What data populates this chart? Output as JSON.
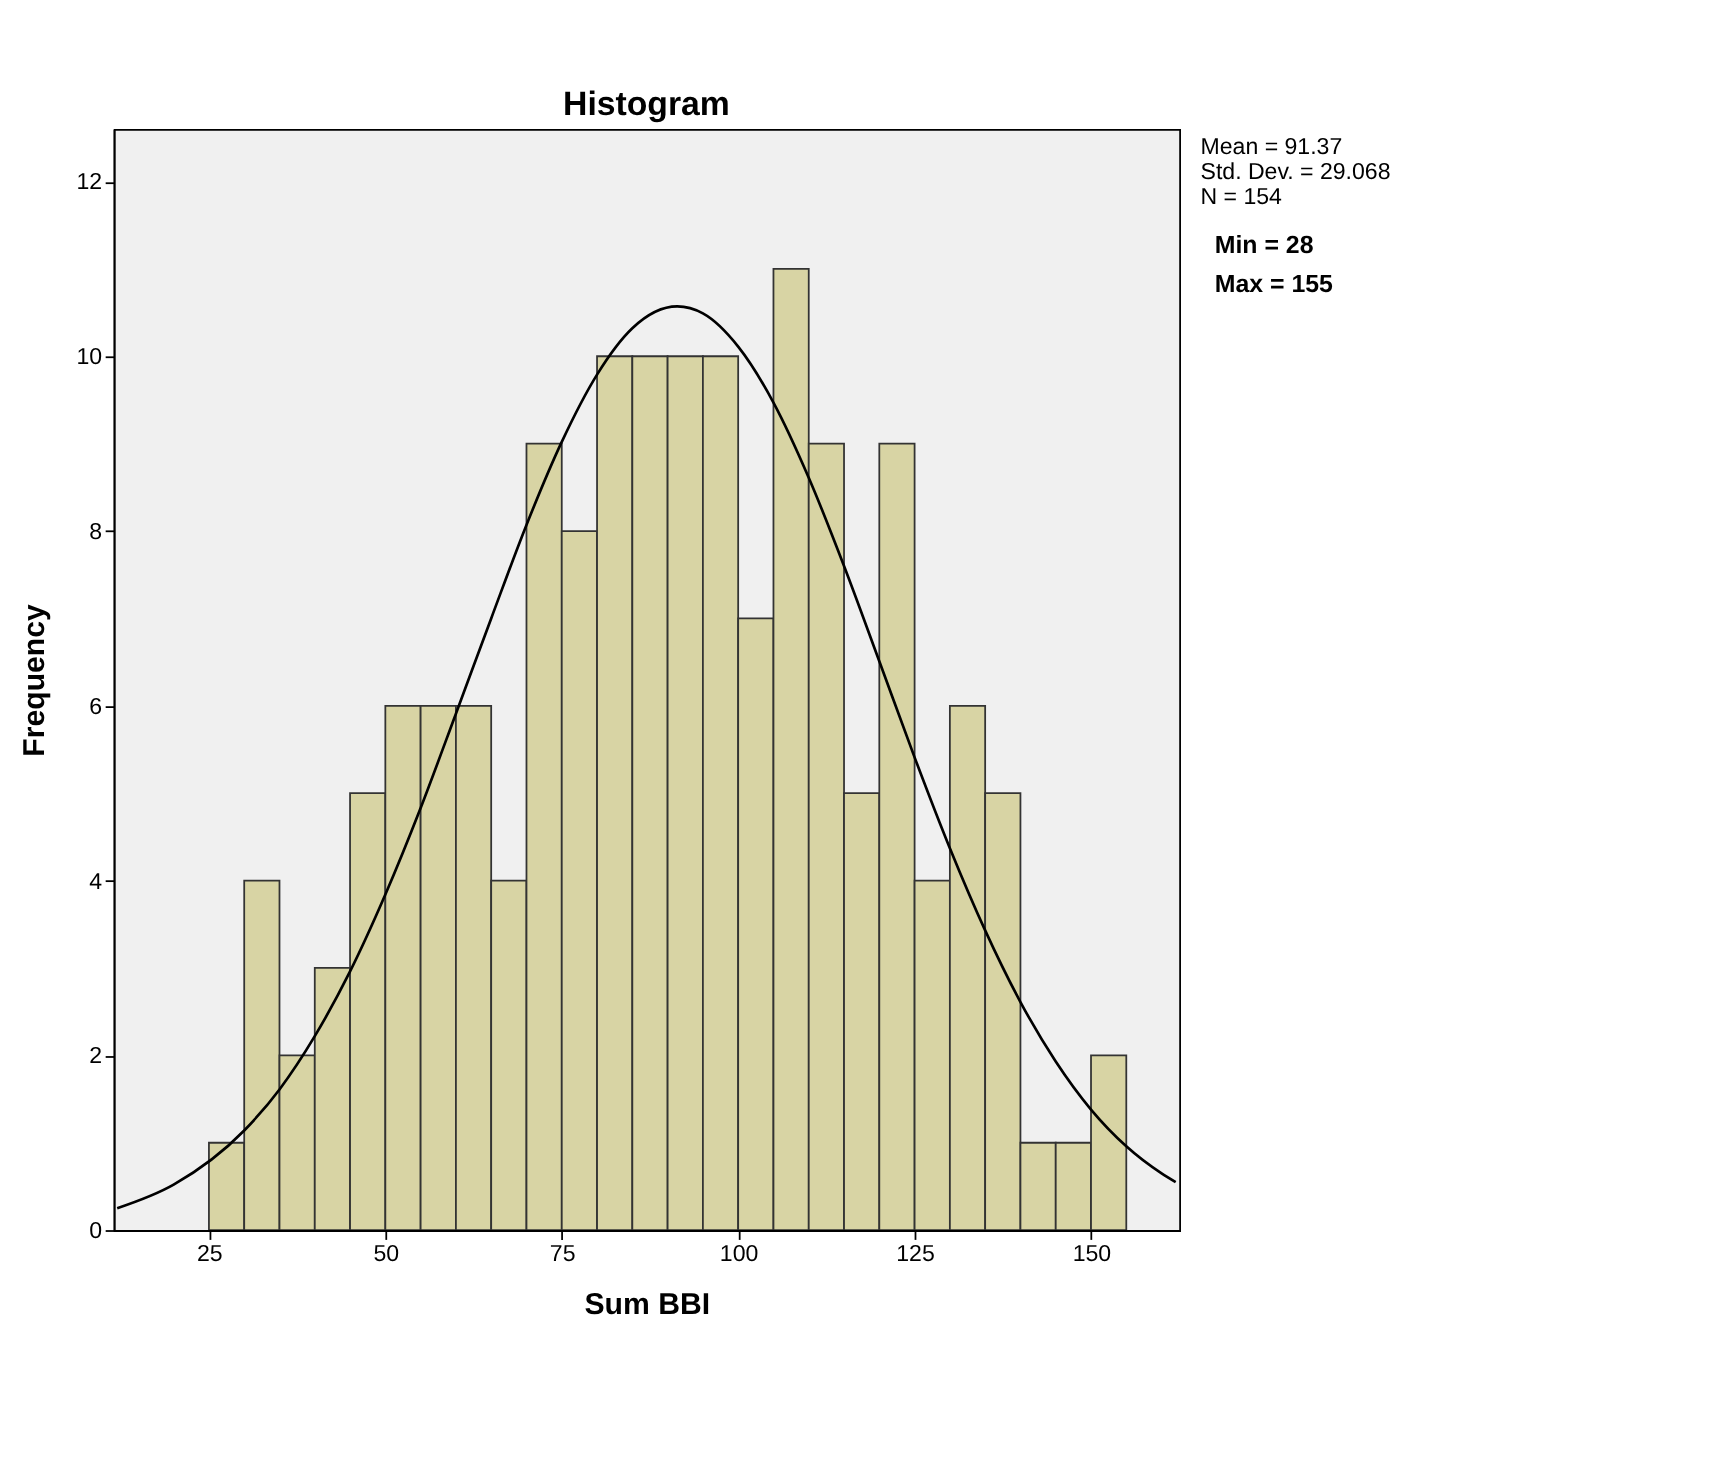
{
  "chart_data": {
    "type": "histogram",
    "title": "Histogram",
    "xlabel": "Sum BBI",
    "ylabel": "Frequency",
    "bins": [
      25,
      30,
      35,
      40,
      45,
      50,
      55,
      60,
      65,
      70,
      75,
      80,
      85,
      90,
      95,
      100,
      105,
      110,
      115,
      120,
      125,
      130,
      135,
      140,
      145,
      150,
      155
    ],
    "values": [
      1,
      4,
      2,
      3,
      5,
      6,
      6,
      6,
      4,
      9,
      8,
      10,
      10,
      10,
      10,
      7,
      11,
      9,
      5,
      9,
      4,
      6,
      5,
      1,
      1,
      2
    ],
    "color": "#d8d4a4",
    "series": [
      {
        "type": "line",
        "color": "#000000",
        "x": [
          12,
          20,
          30,
          35,
          40,
          45,
          50,
          55,
          60,
          65,
          70,
          75,
          80,
          85,
          91.37,
          95,
          100,
          105,
          110,
          115,
          120,
          125,
          130,
          135,
          140,
          145,
          150,
          155,
          160,
          162
        ],
        "values": [
          0.25,
          0.52,
          1.14,
          1.61,
          2.22,
          2.96,
          3.84,
          4.83,
          5.91,
          7.0,
          8.07,
          9.02,
          9.79,
          10.32,
          10.57,
          10.49,
          10.11,
          9.47,
          8.61,
          7.6,
          6.51,
          5.41,
          4.37,
          3.43,
          2.61,
          1.93,
          1.38,
          0.96,
          0.65,
          0.55
        ]
      }
    ],
    "xlim": [
      11.5,
      162.5
    ],
    "ylim": [
      0,
      12.6
    ],
    "xticks": [
      25,
      50,
      75,
      100,
      125,
      150
    ],
    "yticks": [
      0,
      2,
      4,
      6,
      8,
      10,
      12
    ],
    "grid": false,
    "legend": false,
    "annotations": [
      "Mean = 91.37",
      "Std. Dev. = 29.068",
      "N = 154",
      "Min = 28",
      "Max = 155"
    ]
  }
}
